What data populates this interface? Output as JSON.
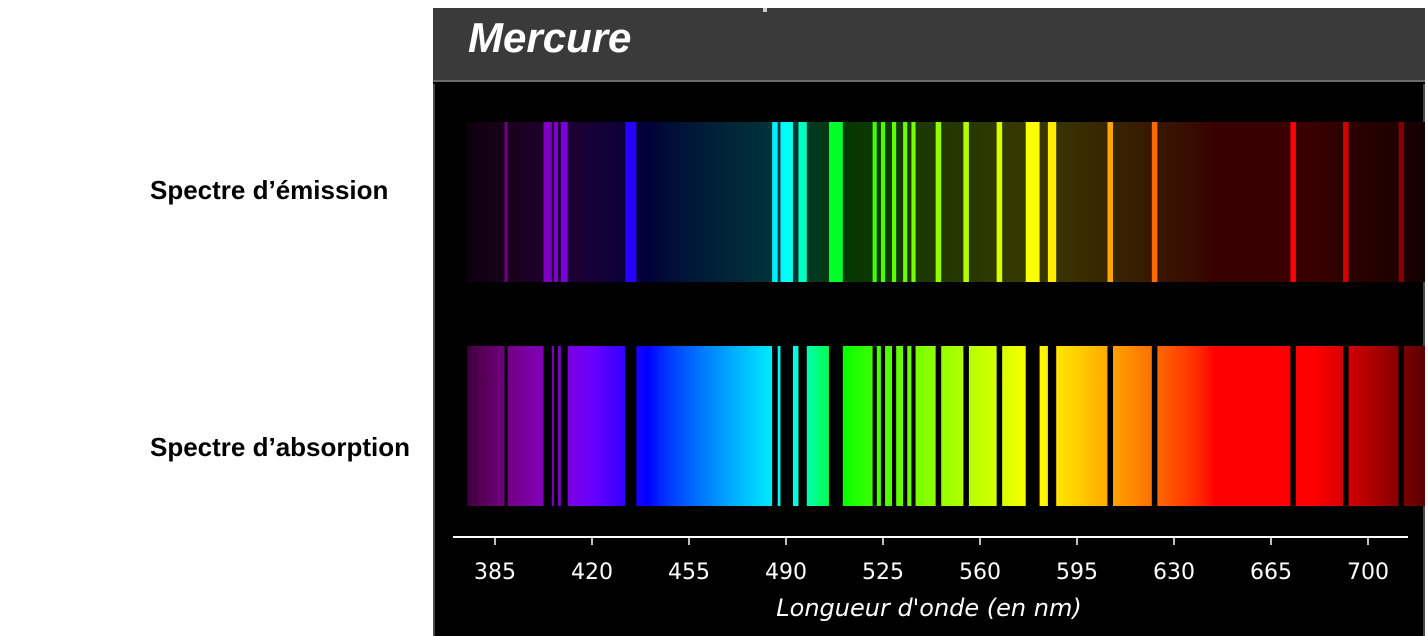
{
  "title": "Mercure",
  "labels": {
    "emission": "Spectre d’émission",
    "absorption": "Spectre d’absorption"
  },
  "axis": {
    "label": "Longueur d'onde (en nm)",
    "ticks": [
      385,
      420,
      455,
      490,
      525,
      560,
      595,
      630,
      665,
      700
    ]
  },
  "chart_data": {
    "type": "spectrum",
    "element": "Mercure",
    "xlabel": "Longueur d'onde (en nm)",
    "xlim": [
      375,
      722
    ],
    "spectra": [
      "emission",
      "absorption"
    ],
    "lines_nm": [
      [
        389,
        1
      ],
      [
        404,
        3
      ],
      [
        407,
        1.5
      ],
      [
        410,
        2.5
      ],
      [
        434,
        4
      ],
      [
        486,
        2
      ],
      [
        489,
        2
      ],
      [
        491,
        3
      ],
      [
        496,
        3
      ],
      [
        508,
        5
      ],
      [
        522,
        1.5
      ],
      [
        525,
        1.5
      ],
      [
        529,
        1.5
      ],
      [
        533,
        1.5
      ],
      [
        536,
        1.5
      ],
      [
        545,
        2
      ],
      [
        555,
        2
      ],
      [
        567,
        2
      ],
      [
        579,
        5
      ],
      [
        586,
        3
      ],
      [
        607,
        2
      ],
      [
        623,
        2
      ],
      [
        673,
        2
      ],
      [
        692,
        2
      ],
      [
        712,
        2
      ]
    ]
  },
  "colors": {
    "panel_bg": "#000000",
    "header_bg": "#3a3a3a"
  }
}
